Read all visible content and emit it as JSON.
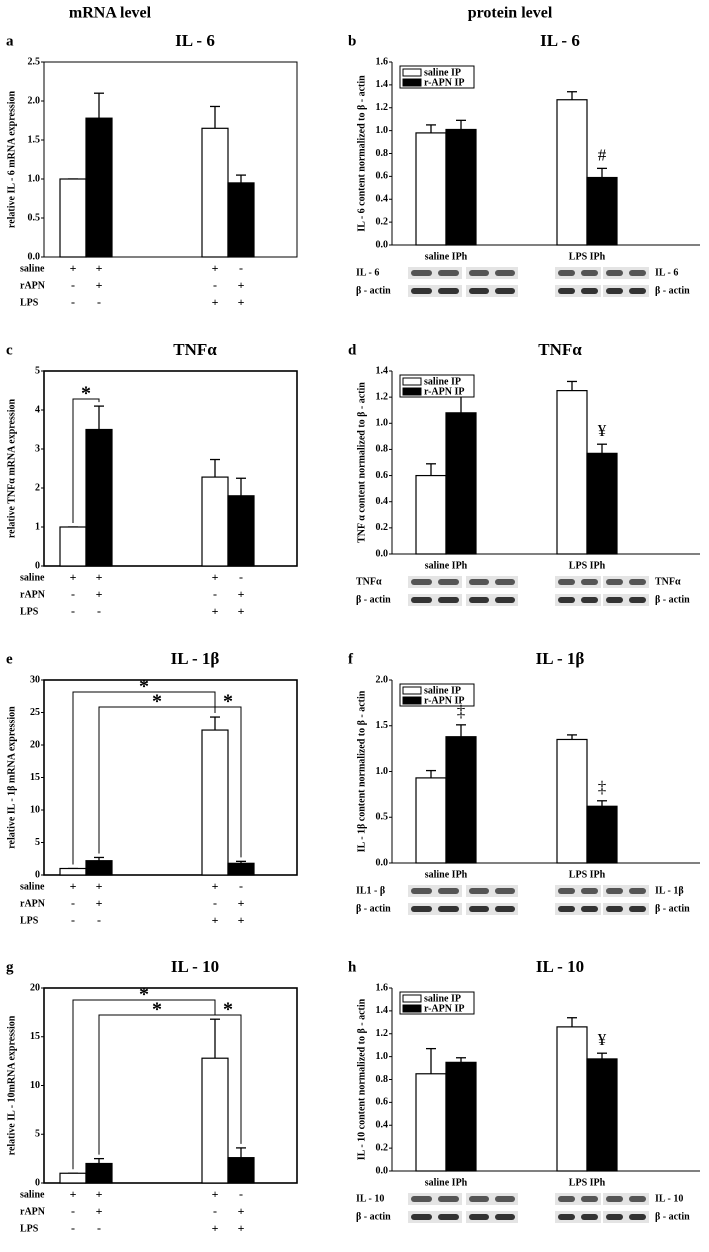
{
  "headers": [
    "mRNA level",
    "protein level"
  ],
  "chart_data": [
    {
      "type": "bar",
      "panel": "a",
      "title": "IL - 6",
      "ylabel": "relative IL - 6 mRNA expression",
      "ylim": [
        0,
        2.5
      ],
      "yticks": [
        {
          "value": 0,
          "label": "0.0"
        },
        0.5,
        {
          "value": 1,
          "label": "1.0"
        },
        1.5,
        {
          "value": 2,
          "label": "2.0"
        },
        2.5
      ],
      "values": [
        1.0,
        1.78,
        1.65,
        0.95
      ],
      "errors": [
        0,
        0.32,
        0.28,
        0.1
      ],
      "colors": [
        "#ffffff",
        "#000000",
        "#ffffff",
        "#000000"
      ],
      "conditions": [
        {
          "label": "saline",
          "signs": [
            "+",
            "+",
            "+",
            "-"
          ]
        },
        {
          "label": "rAPN",
          "signs": [
            "-",
            "+",
            "-",
            "+"
          ]
        },
        {
          "label": "LPS",
          "signs": [
            "-",
            "-",
            "+",
            "+"
          ]
        }
      ],
      "annotations": []
    },
    {
      "type": "bar",
      "panel": "b",
      "title": "IL - 6",
      "ylabel": "IL - 6 content normalized to β - actin",
      "ylim": [
        0,
        1.6
      ],
      "yticks": [
        {
          "value": 0,
          "label": "0.0"
        },
        0.2,
        0.4,
        0.6,
        0.8,
        {
          "value": 1,
          "label": "1.0"
        },
        1.2,
        1.4,
        1.6
      ],
      "categories": [
        "saline IPh",
        "LPS IPh"
      ],
      "series": [
        {
          "name": "saline IP",
          "color": "#ffffff",
          "values": [
            0.98,
            1.27
          ],
          "errors": [
            0.07,
            0.07
          ]
        },
        {
          "name": "r-APN IP",
          "color": "#000000",
          "values": [
            1.01,
            0.59
          ],
          "errors": [
            0.08,
            0.08
          ]
        }
      ],
      "annotations": [
        "#"
      ],
      "blots": {
        "left": [
          "IL - 6",
          "β - actin"
        ],
        "right": [
          "IL - 6",
          "β - actin"
        ]
      }
    },
    {
      "type": "bar",
      "panel": "c",
      "title": "TNFα",
      "ylabel": "relative TNFα mRNA expression",
      "ylim": [
        0,
        5
      ],
      "yticks": [
        0,
        1,
        2,
        3,
        4,
        5
      ],
      "values": [
        1.0,
        3.5,
        2.28,
        1.8
      ],
      "errors": [
        0,
        0.6,
        0.45,
        0.45
      ],
      "colors": [
        "#ffffff",
        "#000000",
        "#ffffff",
        "#000000"
      ],
      "conditions": [
        {
          "label": "saline",
          "signs": [
            "+",
            "+",
            "+",
            "-"
          ]
        },
        {
          "label": "rAPN",
          "signs": [
            "-",
            "+",
            "-",
            "+"
          ]
        },
        {
          "label": "LPS",
          "signs": [
            "-",
            "-",
            "+",
            "+"
          ]
        }
      ],
      "annotations": [
        "*"
      ]
    },
    {
      "type": "bar",
      "panel": "d",
      "title": "TNFα",
      "ylabel": "TNF α content normalized to β - actin",
      "ylim": [
        0,
        1.4
      ],
      "yticks": [
        {
          "value": 0,
          "label": "0.0"
        },
        0.2,
        0.4,
        0.6,
        0.8,
        {
          "value": 1,
          "label": "1.0"
        },
        1.2,
        1.4
      ],
      "categories": [
        "saline IPh",
        "LPS IPh"
      ],
      "series": [
        {
          "name": "saline IP",
          "color": "#ffffff",
          "values": [
            0.6,
            1.25
          ],
          "errors": [
            0.09,
            0.07
          ]
        },
        {
          "name": "r-APN IP",
          "color": "#000000",
          "values": [
            1.08,
            0.77
          ],
          "errors": [
            0.16,
            0.07
          ]
        }
      ],
      "annotations": [
        "¥"
      ],
      "blots": {
        "left": [
          "TNFα",
          "β - actin"
        ],
        "right": [
          "TNFα",
          "β - actin"
        ]
      }
    },
    {
      "type": "bar",
      "panel": "e",
      "title": "IL - 1β",
      "ylabel": "relative IL - 1β  mRNA expression",
      "ylim": [
        0,
        30
      ],
      "yticks": [
        0,
        5,
        10,
        15,
        20,
        25,
        30
      ],
      "values": [
        1.0,
        2.2,
        22.3,
        1.8
      ],
      "errors": [
        0,
        0.5,
        2,
        0.3
      ],
      "colors": [
        "#ffffff",
        "#000000",
        "#ffffff",
        "#000000"
      ],
      "conditions": [
        {
          "label": "saline",
          "signs": [
            "+",
            "+",
            "+",
            "-"
          ]
        },
        {
          "label": "rAPN",
          "signs": [
            "-",
            "+",
            "-",
            "+"
          ]
        },
        {
          "label": "LPS",
          "signs": [
            "-",
            "-",
            "+",
            "+"
          ]
        }
      ],
      "annotations": [
        "*",
        "*",
        "*"
      ]
    },
    {
      "type": "bar",
      "panel": "f",
      "title": "IL - 1β",
      "ylabel": "IL - 1β content normalized to β - actin",
      "ylim": [
        0,
        2
      ],
      "yticks": [
        {
          "value": 0,
          "label": "0.0"
        },
        0.5,
        {
          "value": 1,
          "label": "1.0"
        },
        1.5,
        {
          "value": 2,
          "label": "2.0"
        }
      ],
      "categories": [
        "saline IPh",
        "LPS IPh"
      ],
      "series": [
        {
          "name": "saline IP",
          "color": "#ffffff",
          "values": [
            0.93,
            1.35
          ],
          "errors": [
            0.08,
            0.05
          ]
        },
        {
          "name": "r-APN IP",
          "color": "#000000",
          "values": [
            1.38,
            0.62
          ],
          "errors": [
            0.13,
            0.06
          ]
        }
      ],
      "annotations": [
        "‡",
        "‡"
      ],
      "blots": {
        "left": [
          "IL1 - β",
          "β - actin"
        ],
        "right": [
          "IL - 1β",
          "β - actin"
        ]
      }
    },
    {
      "type": "bar",
      "panel": "g",
      "title": "IL - 10",
      "ylabel": "relative IL - 10mRNA expression",
      "ylim": [
        0,
        20
      ],
      "yticks": [
        0,
        5,
        10,
        15,
        20
      ],
      "values": [
        1.0,
        2.0,
        12.8,
        2.6
      ],
      "errors": [
        0,
        0.5,
        4,
        1.0
      ],
      "colors": [
        "#ffffff",
        "#000000",
        "#ffffff",
        "#000000"
      ],
      "conditions": [
        {
          "label": "saline",
          "signs": [
            "+",
            "+",
            "+",
            "-"
          ]
        },
        {
          "label": "rAPN",
          "signs": [
            "-",
            "+",
            "-",
            "+"
          ]
        },
        {
          "label": "LPS",
          "signs": [
            "-",
            "-",
            "+",
            "+"
          ]
        }
      ],
      "annotations": [
        "*",
        "*",
        "*"
      ]
    },
    {
      "type": "bar",
      "panel": "h",
      "title": "IL - 10",
      "ylabel": "IL - 10 content normalized to β - actin",
      "ylim": [
        0,
        1.6
      ],
      "yticks": [
        {
          "value": 0,
          "label": "0.0"
        },
        0.2,
        0.4,
        0.6,
        0.8,
        {
          "value": 1,
          "label": "1.0"
        },
        1.2,
        1.4,
        1.6
      ],
      "categories": [
        "saline IPh",
        "LPS IPh"
      ],
      "series": [
        {
          "name": "saline IP",
          "color": "#ffffff",
          "values": [
            0.85,
            1.26
          ],
          "errors": [
            0.22,
            0.08
          ]
        },
        {
          "name": "r-APN IP",
          "color": "#000000",
          "values": [
            0.95,
            0.98
          ],
          "errors": [
            0.04,
            0.05
          ]
        }
      ],
      "annotations": [
        "¥"
      ],
      "blots": {
        "left": [
          "IL - 10",
          "β - actin"
        ],
        "right": [
          "IL - 10",
          "β - actin"
        ]
      }
    }
  ]
}
